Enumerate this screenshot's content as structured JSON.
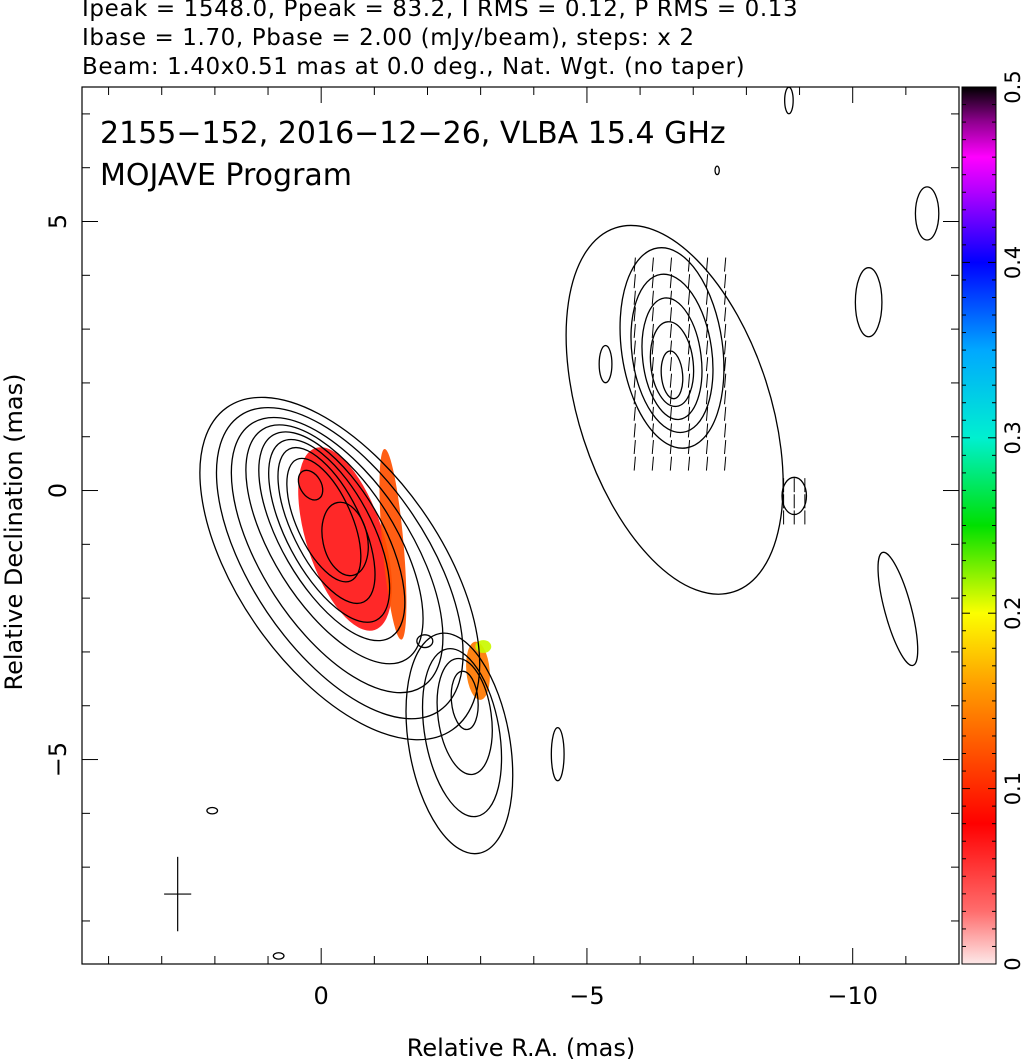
{
  "header": {
    "line1": "Ipeak = 1548.0, Ppeak = 83.2, I RMS = 0.12, P RMS = 0.13",
    "line2": "Ibase = 1.70, Pbase = 2.00 (mJy/beam), steps: x 2",
    "line3": "Beam: 1.40x0.51 mas at 0.0 deg., Nat. Wgt. (no taper)"
  },
  "chart_data": {
    "type": "heatmap",
    "title": "2155−152, 2016−12−26, VLBA 15.4 GHz",
    "subtitle": "MOJAVE Program",
    "xlabel": "Relative R.A. (mas)",
    "ylabel": "Relative Declination (mas)",
    "xlim": [
      4.5,
      -12.0
    ],
    "ylim": [
      -8.8,
      7.5
    ],
    "x_ticks": [
      0,
      -5,
      -10
    ],
    "x_tick_labels": [
      "0",
      "−5",
      "−10"
    ],
    "y_ticks": [
      5,
      0,
      -5
    ],
    "y_tick_labels": [
      "5",
      "0",
      "−5"
    ],
    "colorbar": {
      "range": [
        0,
        0.5
      ],
      "ticks": [
        0,
        0.1,
        0.2,
        0.3,
        0.4,
        0.5
      ],
      "tick_labels": [
        "0",
        "0.1",
        "0.2",
        "0.3",
        "0.4",
        "0.5"
      ]
    },
    "beam": {
      "major_mas": 1.4,
      "minor_mas": 0.51,
      "pa_deg": 0.0,
      "center": [
        2.7,
        -7.5
      ]
    },
    "contour_levels_mJy": [
      1.7,
      3.4,
      6.8,
      13.6,
      27.2,
      54.4,
      108.8,
      217.6,
      435.2,
      870.4
    ],
    "contour_color": "#000000",
    "core_region": {
      "contours": [
        {
          "center": [
            -0.35,
            -1.45
          ],
          "rx": 3.7,
          "ry": 1.9,
          "angle_deg": 55
        },
        {
          "center": [
            -0.35,
            -1.35
          ],
          "rx": 3.35,
          "ry": 1.65,
          "angle_deg": 56
        },
        {
          "center": [
            -0.3,
            -1.2
          ],
          "rx": 2.95,
          "ry": 1.4,
          "angle_deg": 57
        },
        {
          "center": [
            -0.25,
            -1.0
          ],
          "rx": 2.55,
          "ry": 1.15,
          "angle_deg": 58
        },
        {
          "center": [
            -0.2,
            -0.85
          ],
          "rx": 2.2,
          "ry": 0.95,
          "angle_deg": 60
        },
        {
          "center": [
            -0.15,
            -0.75
          ],
          "rx": 1.9,
          "ry": 0.8,
          "angle_deg": 62
        },
        {
          "center": [
            -0.1,
            -0.65
          ],
          "rx": 1.6,
          "ry": 0.65,
          "angle_deg": 64
        },
        {
          "center": [
            -0.05,
            -0.55
          ],
          "rx": 1.25,
          "ry": 0.52,
          "angle_deg": 66
        },
        {
          "center": [
            -0.45,
            -0.9
          ],
          "rx": 0.7,
          "ry": 0.42,
          "angle_deg": 78
        },
        {
          "center": [
            0.2,
            0.1
          ],
          "rx": 0.3,
          "ry": 0.2,
          "angle_deg": 60
        }
      ]
    },
    "extended_jet": {
      "contours": [
        {
          "center": [
            -2.6,
            -4.7
          ],
          "rx": 2.1,
          "ry": 0.95,
          "angle_deg": 80
        },
        {
          "center": [
            -2.65,
            -4.5
          ],
          "rx": 1.6,
          "ry": 0.7,
          "angle_deg": 80
        },
        {
          "center": [
            -2.7,
            -4.2
          ],
          "rx": 1.1,
          "ry": 0.5,
          "angle_deg": 82
        },
        {
          "center": [
            -2.7,
            -3.9
          ],
          "rx": 0.55,
          "ry": 0.25,
          "angle_deg": 85
        },
        {
          "center": [
            -1.95,
            -2.8
          ],
          "rx": 0.15,
          "ry": 0.12,
          "angle_deg": 0
        },
        {
          "center": [
            -4.45,
            -4.9
          ],
          "rx": 0.5,
          "ry": 0.12,
          "angle_deg": 90
        },
        {
          "center": [
            2.05,
            -5.95
          ],
          "rx": 0.1,
          "ry": 0.06,
          "angle_deg": 0
        },
        {
          "center": [
            0.8,
            -8.65
          ],
          "rx": 0.1,
          "ry": 0.06,
          "angle_deg": 0
        }
      ]
    },
    "nw_component": {
      "contours": [
        {
          "center": [
            -6.65,
            1.5
          ],
          "rx": 3.6,
          "ry": 1.8,
          "angle_deg": 72
        },
        {
          "center": [
            -6.6,
            2.65
          ],
          "rx": 1.9,
          "ry": 0.95,
          "angle_deg": 82
        },
        {
          "center": [
            -6.6,
            2.55
          ],
          "rx": 1.5,
          "ry": 0.75,
          "angle_deg": 82
        },
        {
          "center": [
            -6.6,
            2.45
          ],
          "rx": 1.15,
          "ry": 0.55,
          "angle_deg": 83
        },
        {
          "center": [
            -6.6,
            2.35
          ],
          "rx": 0.8,
          "ry": 0.4,
          "angle_deg": 84
        },
        {
          "center": [
            -6.6,
            2.15
          ],
          "rx": 0.45,
          "ry": 0.2,
          "angle_deg": 85
        },
        {
          "center": [
            -5.35,
            2.35
          ],
          "rx": 0.35,
          "ry": 0.12,
          "angle_deg": 90
        },
        {
          "center": [
            -8.9,
            -0.1
          ],
          "rx": 0.35,
          "ry": 0.23,
          "angle_deg": 90
        },
        {
          "center": [
            -10.3,
            3.5
          ],
          "rx": 0.65,
          "ry": 0.25,
          "angle_deg": 90
        },
        {
          "center": [
            -11.4,
            5.15
          ],
          "rx": 0.5,
          "ry": 0.22,
          "angle_deg": 90
        },
        {
          "center": [
            -10.85,
            -2.2
          ],
          "rx": 1.1,
          "ry": 0.25,
          "angle_deg": 75
        },
        {
          "center": [
            -7.45,
            5.95
          ],
          "rx": 0.08,
          "ry": 0.04,
          "angle_deg": 90
        },
        {
          "center": [
            -8.8,
            7.25
          ],
          "rx": 0.25,
          "ry": 0.08,
          "angle_deg": 90
        }
      ]
    },
    "polarization_regions": [
      {
        "center": [
          -0.45,
          -0.9
        ],
        "rx": 1.8,
        "ry": 0.72,
        "angle_deg": 72,
        "fraction": 0.07
      },
      {
        "center": [
          -1.35,
          -1.0
        ],
        "rx": 1.8,
        "ry": 0.2,
        "angle_deg": 85,
        "fraction": 0.12
      },
      {
        "center": [
          -2.95,
          -3.35
        ],
        "rx": 0.55,
        "ry": 0.22,
        "angle_deg": 85,
        "fraction": 0.14
      },
      {
        "center": [
          -3.05,
          -2.9
        ],
        "rx": 0.15,
        "ry": 0.12,
        "angle_deg": 0,
        "fraction": 0.21
      }
    ],
    "evpa_regions": [
      {
        "x_range": [
          -5.9,
          -7.6
        ],
        "y_range": [
          0.5,
          4.2
        ],
        "angle_deg": 95
      },
      {
        "x_range": [
          -8.7,
          -9.1
        ],
        "y_range": [
          -0.5,
          0.1
        ],
        "angle_deg": 90
      }
    ]
  }
}
